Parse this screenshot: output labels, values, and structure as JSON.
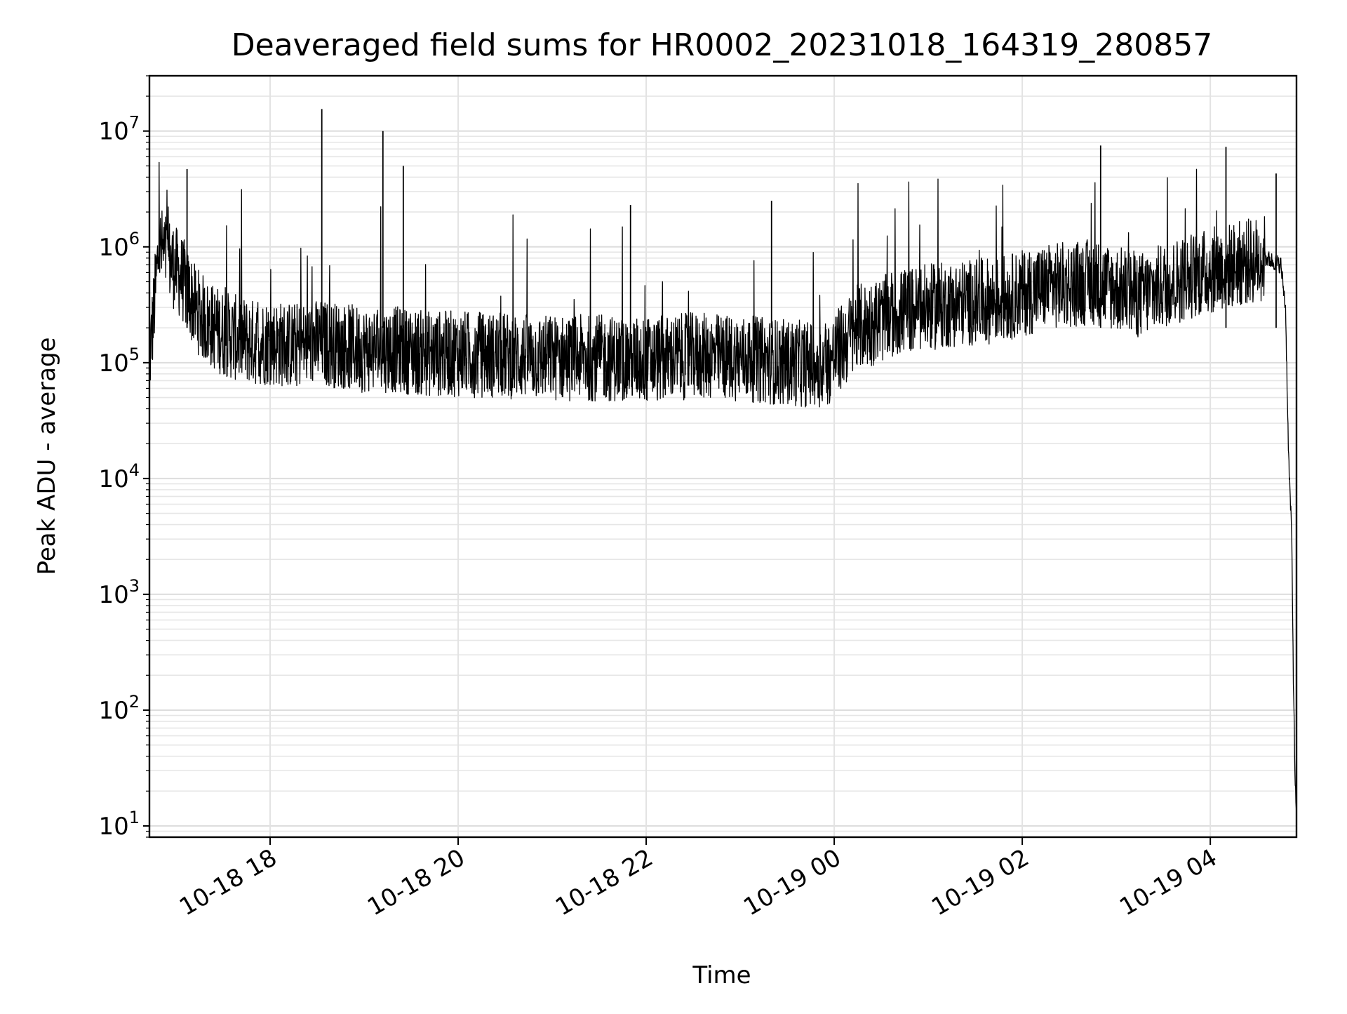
{
  "chart_data": {
    "type": "line",
    "title": "Deaveraged field sums for HR0002_20231018_164319_280857",
    "xlabel": "Time",
    "ylabel": "Peak ADU - average",
    "yscale": "log",
    "ylim": [
      8,
      30000000
    ],
    "xlim": [
      "2023-10-18 16:43",
      "2023-10-19 04:55"
    ],
    "grid": true,
    "legend": "none",
    "x_ticks": [
      {
        "t": "2023-10-18 18:00",
        "label": "10-18 18"
      },
      {
        "t": "2023-10-18 20:00",
        "label": "10-18 20"
      },
      {
        "t": "2023-10-18 22:00",
        "label": "10-18 22"
      },
      {
        "t": "2023-10-19 00:00",
        "label": "10-19 00"
      },
      {
        "t": "2023-10-19 02:00",
        "label": "10-19 02"
      },
      {
        "t": "2023-10-19 04:00",
        "label": "10-19 04"
      }
    ],
    "y_ticks": [
      {
        "value": 10,
        "base": "10",
        "exp": "1"
      },
      {
        "value": 100,
        "base": "10",
        "exp": "2"
      },
      {
        "value": 1000,
        "base": "10",
        "exp": "3"
      },
      {
        "value": 10000,
        "base": "10",
        "exp": "4"
      },
      {
        "value": 100000,
        "base": "10",
        "exp": "5"
      },
      {
        "value": 1000000,
        "base": "10",
        "exp": "6"
      },
      {
        "value": 10000000,
        "base": "10",
        "exp": "7"
      }
    ],
    "series": [
      {
        "color": "#000000",
        "x": [
          "2023-10-18 16:43",
          "2023-10-18 16:46",
          "2023-10-18 16:49",
          "2023-10-18 16:52",
          "2023-10-18 16:58",
          "2023-10-18 17:05",
          "2023-10-18 17:12",
          "2023-10-18 17:20",
          "2023-10-18 17:30",
          "2023-10-18 17:40",
          "2023-10-18 17:50",
          "2023-10-18 18:00",
          "2023-10-18 18:15",
          "2023-10-18 18:30",
          "2023-10-18 18:45",
          "2023-10-18 19:00",
          "2023-10-18 19:20",
          "2023-10-18 19:40",
          "2023-10-18 20:00",
          "2023-10-18 20:30",
          "2023-10-18 21:00",
          "2023-10-18 21:30",
          "2023-10-18 22:00",
          "2023-10-18 22:30",
          "2023-10-18 23:00",
          "2023-10-18 23:30",
          "2023-10-18 23:55",
          "2023-10-19 00:15",
          "2023-10-19 00:45",
          "2023-10-19 01:15",
          "2023-10-19 01:45",
          "2023-10-19 02:15",
          "2023-10-19 02:45",
          "2023-10-19 03:15",
          "2023-10-19 03:45",
          "2023-10-19 04:15",
          "2023-10-19 04:35",
          "2023-10-19 04:45",
          "2023-10-19 04:48",
          "2023-10-19 04:50",
          "2023-10-19 04:52",
          "2023-10-19 04:53",
          "2023-10-19 04:54",
          "2023-10-19 04:55"
        ],
        "y": [
          100000,
          300000,
          1000000,
          900000,
          700000,
          500000,
          300000,
          220000,
          180000,
          160000,
          150000,
          150000,
          140000,
          150000,
          140000,
          130000,
          130000,
          120000,
          120000,
          115000,
          110000,
          110000,
          105000,
          115000,
          110000,
          100000,
          95000,
          200000,
          280000,
          320000,
          350000,
          450000,
          500000,
          380000,
          550000,
          700000,
          800000,
          700000,
          300000,
          15000,
          3000,
          200,
          30,
          10
        ]
      }
    ],
    "spikes": [
      {
        "t": "2023-10-18 17:07",
        "y": 4700000
      },
      {
        "t": "2023-10-18 18:33",
        "y": 15500000
      },
      {
        "t": "2023-10-18 19:12",
        "y": 10000000
      },
      {
        "t": "2023-10-18 19:25",
        "y": 5000000
      },
      {
        "t": "2023-10-18 21:50",
        "y": 2300000
      },
      {
        "t": "2023-10-18 23:20",
        "y": 2500000
      },
      {
        "t": "2023-10-19 02:50",
        "y": 7500000
      },
      {
        "t": "2023-10-19 04:10",
        "y": 7300000
      },
      {
        "t": "2023-10-19 04:42",
        "y": 4300000
      }
    ]
  }
}
